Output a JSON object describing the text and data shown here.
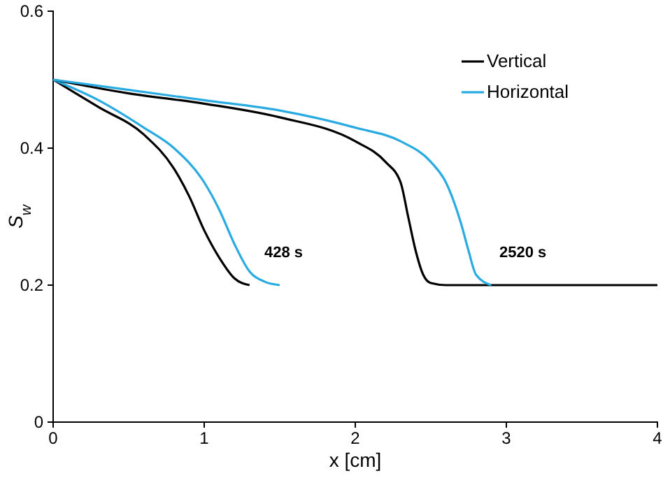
{
  "chart_data": {
    "type": "line",
    "xlabel": "x [cm]",
    "ylabel": "S$_{w}$",
    "xlim": [
      0,
      4
    ],
    "ylim": [
      0,
      0.6
    ],
    "xticks": [
      0,
      1,
      2,
      3,
      4
    ],
    "yticks": [
      0,
      0.2,
      0.4,
      0.6
    ],
    "grid": false,
    "legend": "top right",
    "marker": "none",
    "line_style": "solid",
    "series": [
      {
        "name": "Vertical",
        "color": "#000000",
        "x": [
          0,
          0.3,
          0.6,
          0.8,
          0.9,
          1.0,
          1.1,
          1.2,
          1.3
        ],
        "values": [
          0.5,
          0.46,
          0.42,
          0.37,
          0.33,
          0.28,
          0.24,
          0.21,
          0.2
        ]
      },
      {
        "name": "Horizontal",
        "color": "#29abe2",
        "x": [
          0,
          0.3,
          0.6,
          0.8,
          1.0,
          1.1,
          1.2,
          1.3,
          1.4,
          1.5
        ],
        "values": [
          0.5,
          0.47,
          0.43,
          0.4,
          0.35,
          0.31,
          0.26,
          0.22,
          0.205,
          0.2
        ]
      },
      {
        "color": "#000000",
        "x": [
          0,
          0.5,
          1,
          1.5,
          2,
          2.2,
          2.3,
          2.35,
          2.4,
          2.45,
          2.5,
          2.6,
          3,
          4
        ],
        "values": [
          0.5,
          0.48,
          0.465,
          0.445,
          0.41,
          0.38,
          0.35,
          0.3,
          0.25,
          0.215,
          0.203,
          0.2,
          0.2,
          0.2
        ]
      },
      {
        "color": "#29abe2",
        "x": [
          0,
          0.5,
          1,
          1.5,
          2,
          2.3,
          2.5,
          2.6,
          2.7,
          2.75,
          2.8,
          2.9
        ],
        "values": [
          0.5,
          0.485,
          0.47,
          0.455,
          0.43,
          0.41,
          0.38,
          0.35,
          0.29,
          0.25,
          0.215,
          0.2
        ]
      }
    ],
    "annotations": [
      "428 s",
      "2520 s"
    ]
  }
}
